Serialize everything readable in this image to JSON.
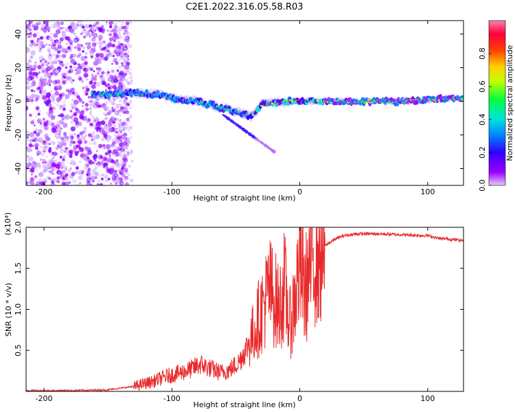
{
  "title": "C2E1.2022.316.05.58.R03",
  "chart_data": [
    {
      "type": "heatmap",
      "xlabel": "Height of straight line (km)",
      "ylabel": "Frequency (Hz)",
      "xlim": [
        -214,
        128
      ],
      "ylim": [
        -50,
        48
      ],
      "xticks": [
        -200,
        -100,
        0,
        100
      ],
      "yticks": [
        -40,
        -20,
        0,
        20,
        40
      ],
      "colorbar": {
        "label": "Normalized spectral amplitude",
        "range": [
          0,
          1
        ],
        "ticks": [
          "0.0",
          "0.2",
          "0.4",
          "0.6",
          "0.8"
        ],
        "colormap": [
          "#9C00FF",
          "#3000FF",
          "#0080FF",
          "#00E0E0",
          "#00FF40",
          "#C0FF00",
          "#FFD000",
          "#FF4000",
          "#FF0040",
          "#FF80B0"
        ]
      },
      "ridge": {
        "x": [
          -162,
          -150,
          -130,
          -110,
          -95,
          -80,
          -65,
          -50,
          -38,
          -30,
          -20,
          -10,
          0,
          20,
          50,
          80,
          100,
          128
        ],
        "frequency": [
          4,
          4,
          5,
          4,
          1,
          0,
          -3,
          -6,
          -9,
          -2,
          -1,
          0,
          0,
          0,
          0,
          0,
          1,
          2
        ]
      }
    },
    {
      "type": "line",
      "xlabel": "Height of straight line (km)",
      "ylabel": "SNR (10 * v/v)",
      "y_multiplier": "(x10⁴)",
      "xlim": [
        -214,
        128
      ],
      "ylim": [
        0,
        2.0
      ],
      "xticks": [
        -200,
        -100,
        0,
        100
      ],
      "yticks": [
        "0.5",
        "1.0",
        "1.5",
        "2.0"
      ],
      "series": [
        {
          "color": "#E8292B",
          "x": [
            -214,
            -180,
            -150,
            -130,
            -115,
            -105,
            -95,
            -85,
            -78,
            -70,
            -62,
            -55,
            -48,
            -42,
            -36,
            -32,
            -28,
            -24,
            -20,
            -16,
            -12,
            -8,
            -4,
            0,
            4,
            8,
            11,
            14,
            18,
            22,
            28,
            35,
            45,
            60,
            80,
            95,
            100,
            105,
            110,
            115,
            120,
            128
          ],
          "values": [
            0.01,
            0.01,
            0.02,
            0.06,
            0.12,
            0.18,
            0.22,
            0.27,
            0.33,
            0.28,
            0.23,
            0.26,
            0.35,
            0.52,
            0.72,
            0.9,
            1.05,
            1.25,
            1.15,
            1.0,
            1.3,
            0.8,
            1.1,
            1.55,
            1.2,
            1.5,
            1.7,
            1.65,
            1.75,
            1.8,
            1.86,
            1.9,
            1.92,
            1.92,
            1.91,
            1.9,
            1.9,
            1.88,
            1.86,
            1.86,
            1.85,
            1.84
          ]
        }
      ]
    }
  ]
}
